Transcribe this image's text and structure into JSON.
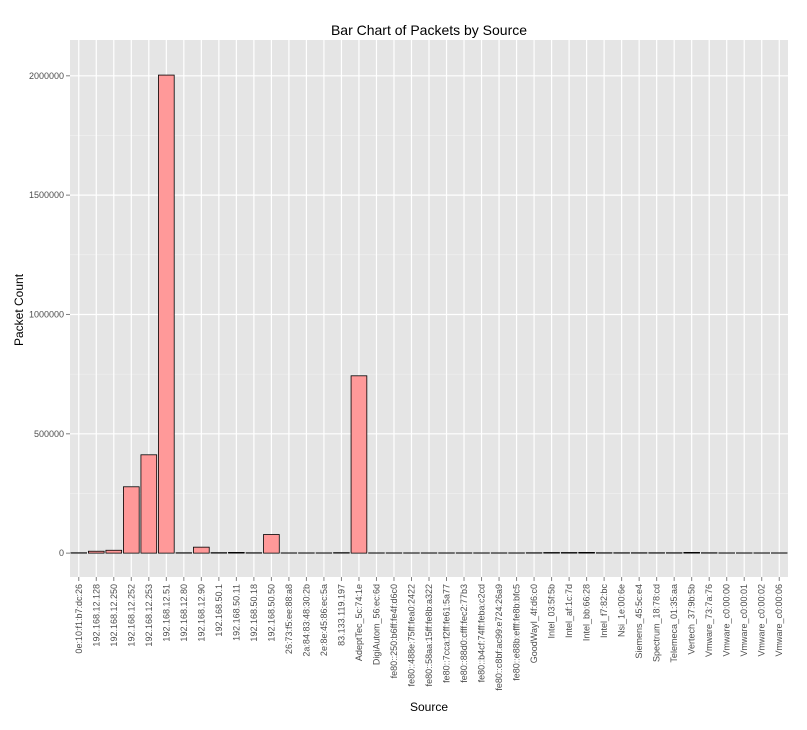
{
  "chart_data": {
    "type": "bar",
    "title": "Bar Chart of Packets by Source",
    "xlabel": "Source",
    "ylabel": "Packet Count",
    "ylim": [
      -100000,
      2150000
    ],
    "yticks": [
      0,
      500000,
      1000000,
      1500000,
      2000000
    ],
    "ytick_labels": [
      "0",
      "500000",
      "1000000",
      "1500000",
      "2000000"
    ],
    "grid": true,
    "legend": "none",
    "colors": {
      "panel_bg": "#E5E5E5",
      "grid_major": "#FFFFFF",
      "grid_minor": "#F2F2F2",
      "bar_fill": "#FF9999",
      "bar_stroke": "#000000",
      "tick_label": "#4D4D4D",
      "text": "#000000"
    },
    "categories": [
      "0e:10:f1:b7:dc:26",
      "192.168.12.128",
      "192.168.12.250",
      "192.168.12.252",
      "192.168.12.253",
      "192.168.12.51",
      "192.168.12.80",
      "192.168.12.90",
      "192.168.50.1",
      "192.168.50.11",
      "192.168.50.18",
      "192.168.50.50",
      "26:73:f5:ee:88:a8",
      "2a:84:83:48:30:2b",
      "2e:8e:45:86:ec:5a",
      "83.133.119.197",
      "AdeptTec_5c:74:1e",
      "DigiAutom_56:ec:6d",
      "fe80::250:b6ff:fe4f:d6c0",
      "fe80::488e:75ff:fea0:2422",
      "fe80::58aa:15ff:fe8b:a322",
      "fe80::7cca:f2ff:fe61:5a77",
      "fe80::88d0:cfff:fec2:77b3",
      "fe80::b4cf:74ff:feba:c2cd",
      "fe80::c8bf:ac99:e724:26a9",
      "fe80::e88b:efff:fe8b:bfc5",
      "GoodWayI_4f:d6:c0",
      "Intel_03:5f:5b",
      "Intel_af:1c:7d",
      "Intel_bb:66:28",
      "Intel_f7:82:bc",
      "Nsi_1e:00:6e",
      "Siemens_45:5c:e4",
      "Spectrum_18:78:cd",
      "Telemeca_01:35:aa",
      "Vertech_37:9b:5b",
      "Vmware_73:7a:76",
      "Vmware_c0:00:00",
      "Vmware_c0:00:01",
      "Vmware_c0:00:02",
      "Vmware_c0:00:06"
    ],
    "values": [
      1500,
      8000,
      12000,
      278000,
      412000,
      2003000,
      1500,
      25000,
      2000,
      3000,
      1500,
      78000,
      1000,
      1000,
      1000,
      2000,
      743000,
      1000,
      1000,
      1000,
      1000,
      1000,
      1000,
      1000,
      1000,
      1000,
      1500,
      2500,
      2500,
      3000,
      1500,
      1500,
      1500,
      1500,
      1500,
      3000,
      1500,
      1000,
      1000,
      1000,
      1000
    ]
  }
}
